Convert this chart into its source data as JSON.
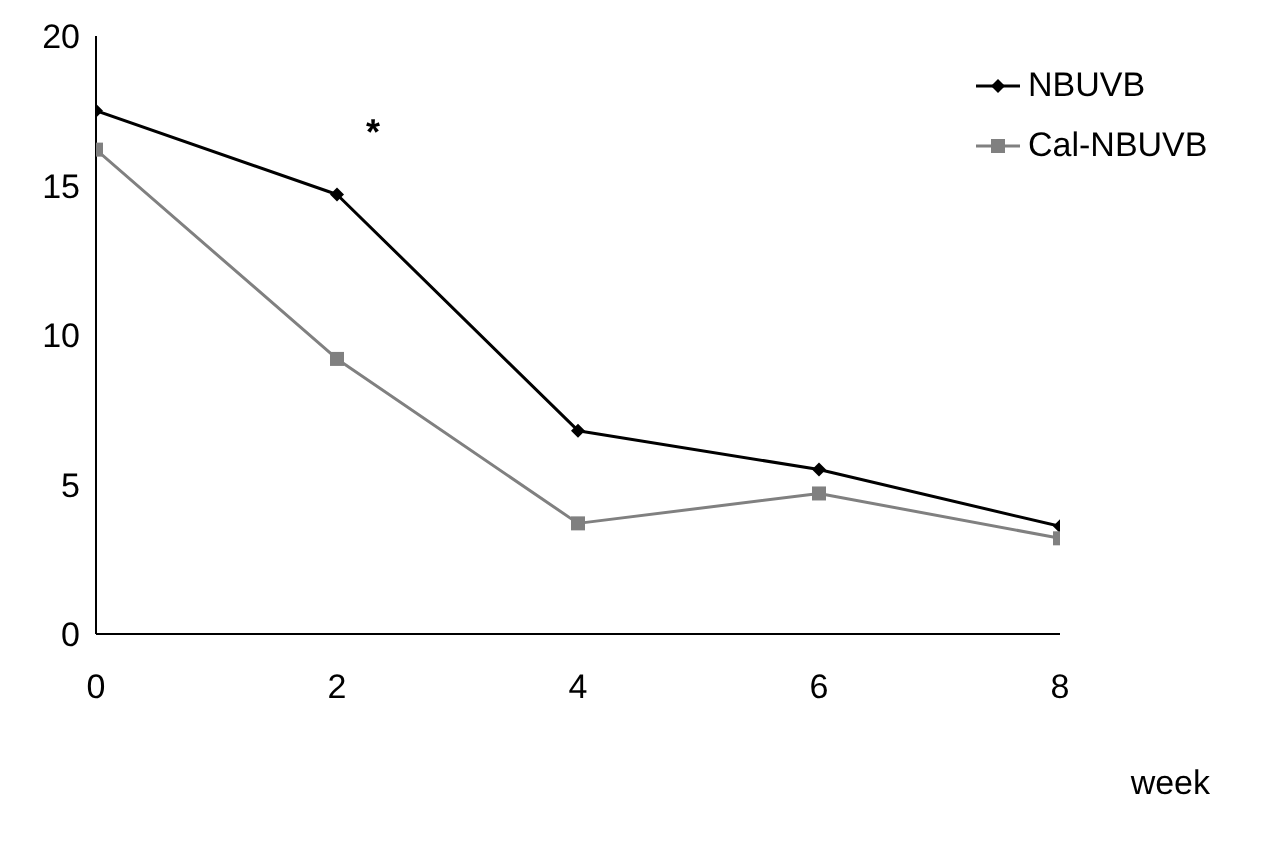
{
  "chart_data": {
    "type": "line",
    "xlabel": "week",
    "x": [
      0,
      2,
      4,
      6,
      8
    ],
    "series": [
      {
        "name": "NBUVB",
        "color": "#000000",
        "marker": "diamond",
        "values": [
          17.5,
          14.7,
          6.8,
          5.5,
          3.6
        ]
      },
      {
        "name": "Cal-NBUVB",
        "color": "#808080",
        "marker": "square",
        "values": [
          16.2,
          9.2,
          3.7,
          4.7,
          3.2
        ]
      }
    ],
    "xlim": [
      0,
      8
    ],
    "xticks": [
      0,
      2,
      4,
      6,
      8
    ],
    "ylim": [
      0,
      20
    ],
    "yticks": [
      0,
      5,
      10,
      15,
      20
    ],
    "annotations": [
      "*"
    ],
    "grid": false,
    "legend": "top right"
  }
}
